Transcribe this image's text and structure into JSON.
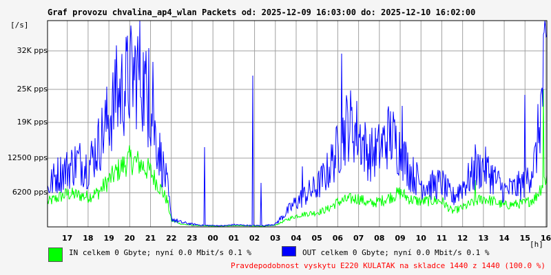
{
  "chart_data": {
    "type": "line",
    "title": "Graf provozu chvalina_ap4_wlan Packets od: 2025-12-09 16:03:00 do: 2025-12-10 16:02:00",
    "ylabel": "[/s]",
    "xlabel": "[h]",
    "yticks": [
      {
        "label": "6200 pps",
        "value": 6200
      },
      {
        "label": "12500 pps",
        "value": 12500
      },
      {
        "label": "19K pps",
        "value": 19000
      },
      {
        "label": "25K pps",
        "value": 25000
      },
      {
        "label": "32K pps",
        "value": 32000
      }
    ],
    "xticks": [
      "17",
      "18",
      "19",
      "20",
      "21",
      "22",
      "23",
      "00",
      "01",
      "02",
      "03",
      "04",
      "05",
      "06",
      "07",
      "08",
      "09",
      "10",
      "11",
      "12",
      "13",
      "14",
      "15",
      "16"
    ],
    "ylim": [
      0,
      37500
    ],
    "grid": true,
    "colors": {
      "in": "#00ff00",
      "out": "#0000ff",
      "grid": "#a0a0a0",
      "plot_bg": "#ffffff",
      "page_bg": "#f5f5f5"
    },
    "series": [
      {
        "name": "IN",
        "color": "#00ff00",
        "x": [
          16.05,
          16.5,
          17,
          17.5,
          18,
          18.5,
          19,
          19.5,
          20,
          20.5,
          21,
          21.4,
          21.8,
          22,
          22.5,
          23,
          23.5,
          24,
          24.5,
          25,
          25.5,
          26,
          26.5,
          27,
          27.5,
          28,
          28.5,
          29,
          29.5,
          30,
          30.5,
          31,
          31.5,
          32,
          32.5,
          33,
          33.5,
          34,
          34.5,
          35,
          35.5,
          36,
          36.5,
          37,
          37.5,
          38,
          38.5,
          39,
          39.5,
          40
        ],
        "values": [
          4500,
          5200,
          6000,
          5800,
          5500,
          6300,
          8500,
          10500,
          12200,
          11500,
          10000,
          7500,
          4800,
          1200,
          500,
          300,
          200,
          150,
          150,
          250,
          200,
          150,
          150,
          300,
          1200,
          2000,
          2400,
          2600,
          3200,
          4500,
          5000,
          5200,
          4200,
          4600,
          5400,
          6200,
          5000,
          4600,
          4800,
          4700,
          2800,
          3500,
          4400,
          5200,
          4600,
          3900,
          4100,
          4300,
          5300,
          9000
        ]
      },
      {
        "name": "OUT",
        "color": "#0000ff",
        "x": [
          16.05,
          16.5,
          17,
          17.5,
          18,
          18.5,
          19,
          19.5,
          20,
          20.5,
          21,
          21.4,
          21.8,
          22,
          22.5,
          23,
          23.5,
          24,
          24.5,
          25,
          25.5,
          26,
          26.5,
          27,
          27.5,
          28,
          28.5,
          29,
          29.5,
          30,
          30.5,
          31,
          31.5,
          32,
          32.5,
          33,
          33.5,
          34,
          34.5,
          35,
          35.5,
          36,
          36.5,
          37,
          37.5,
          38,
          38.5,
          39,
          39.5,
          40
        ],
        "values": [
          7000,
          9500,
          10500,
          12000,
          11000,
          15000,
          20000,
          24000,
          27000,
          28500,
          21000,
          14000,
          7500,
          1500,
          800,
          500,
          300,
          250,
          200,
          400,
          300,
          250,
          250,
          500,
          2500,
          4500,
          6000,
          7200,
          10000,
          14000,
          19000,
          17000,
          13000,
          14000,
          17000,
          14000,
          10000,
          8000,
          7500,
          8000,
          5200,
          7500,
          9500,
          11000,
          9000,
          6500,
          7000,
          8000,
          12000,
          30000
        ]
      }
    ],
    "spikes": [
      {
        "series": "OUT",
        "hour": 19.35,
        "value": 33000
      },
      {
        "series": "OUT",
        "hour": 20.9,
        "value": 32500
      },
      {
        "series": "OUT",
        "hour": 21.1,
        "value": 30000
      },
      {
        "series": "OUT",
        "hour": 23.6,
        "value": 14500
      },
      {
        "series": "OUT",
        "hour": 25.9,
        "value": 27500
      },
      {
        "series": "OUT",
        "hour": 26.3,
        "value": 8000
      },
      {
        "series": "OUT",
        "hour": 28.3,
        "value": 11000
      },
      {
        "series": "OUT",
        "hour": 30.2,
        "value": 31500
      },
      {
        "series": "OUT",
        "hour": 33.1,
        "value": 22000
      },
      {
        "series": "OUT",
        "hour": 36.6,
        "value": 15000
      },
      {
        "series": "OUT",
        "hour": 39.0,
        "value": 24000
      },
      {
        "series": "OUT",
        "hour": 39.9,
        "value": 35000
      },
      {
        "series": "IN",
        "hour": 36.6,
        "value": 8500
      },
      {
        "series": "IN",
        "hour": 39.9,
        "value": 25000
      }
    ]
  },
  "legend": {
    "in": {
      "text": "IN celkem 0 Gbyte; nyní   0.0 Mbit/s 0.1 %",
      "color": "#00ff00"
    },
    "out": {
      "text": "OUT celkem 0 Gbyte; nyní   0.0 Mbit/s 0.1 %",
      "color": "#0000ff"
    }
  },
  "footer": {
    "text": "Pravdepodobnost vyskytu E220 KULATAK na skladce 1440 z 1440 (100.0 %)",
    "color": "#ff0000"
  }
}
